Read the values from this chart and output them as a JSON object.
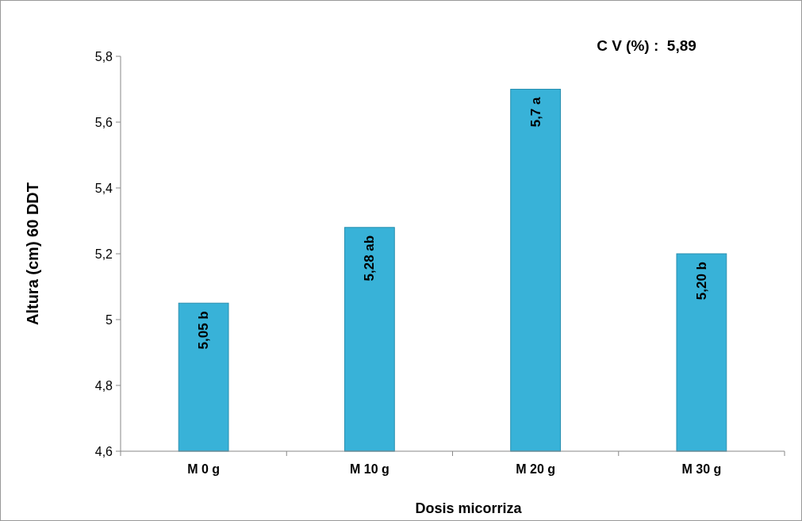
{
  "chart_data": {
    "type": "bar",
    "xlabel": "Dosis micorriza",
    "ylabel": "Altura (cm) 60 DDT",
    "categories": [
      "M 0 g",
      "M 10 g",
      "M 20 g",
      "M 30 g"
    ],
    "values": [
      5.05,
      5.28,
      5.7,
      5.2
    ],
    "value_labels": [
      "5,05 b",
      "5,28 ab",
      "5,7 a",
      "5,20 b"
    ],
    "color": "#38b2d8",
    "ylim": [
      4.6,
      5.8
    ],
    "yticks": [
      {
        "value": 4.6,
        "label": "4,6"
      },
      {
        "value": 4.8,
        "label": "4,8"
      },
      {
        "value": 5,
        "label": "5"
      },
      {
        "value": 5.2,
        "label": "5,2"
      },
      {
        "value": 5.4,
        "label": "5,4"
      },
      {
        "value": 5.6,
        "label": "5,6"
      },
      {
        "value": 5.8,
        "label": "5,8"
      }
    ],
    "annotations": [
      "C V (%) :  5,89"
    ],
    "grid": false
  }
}
